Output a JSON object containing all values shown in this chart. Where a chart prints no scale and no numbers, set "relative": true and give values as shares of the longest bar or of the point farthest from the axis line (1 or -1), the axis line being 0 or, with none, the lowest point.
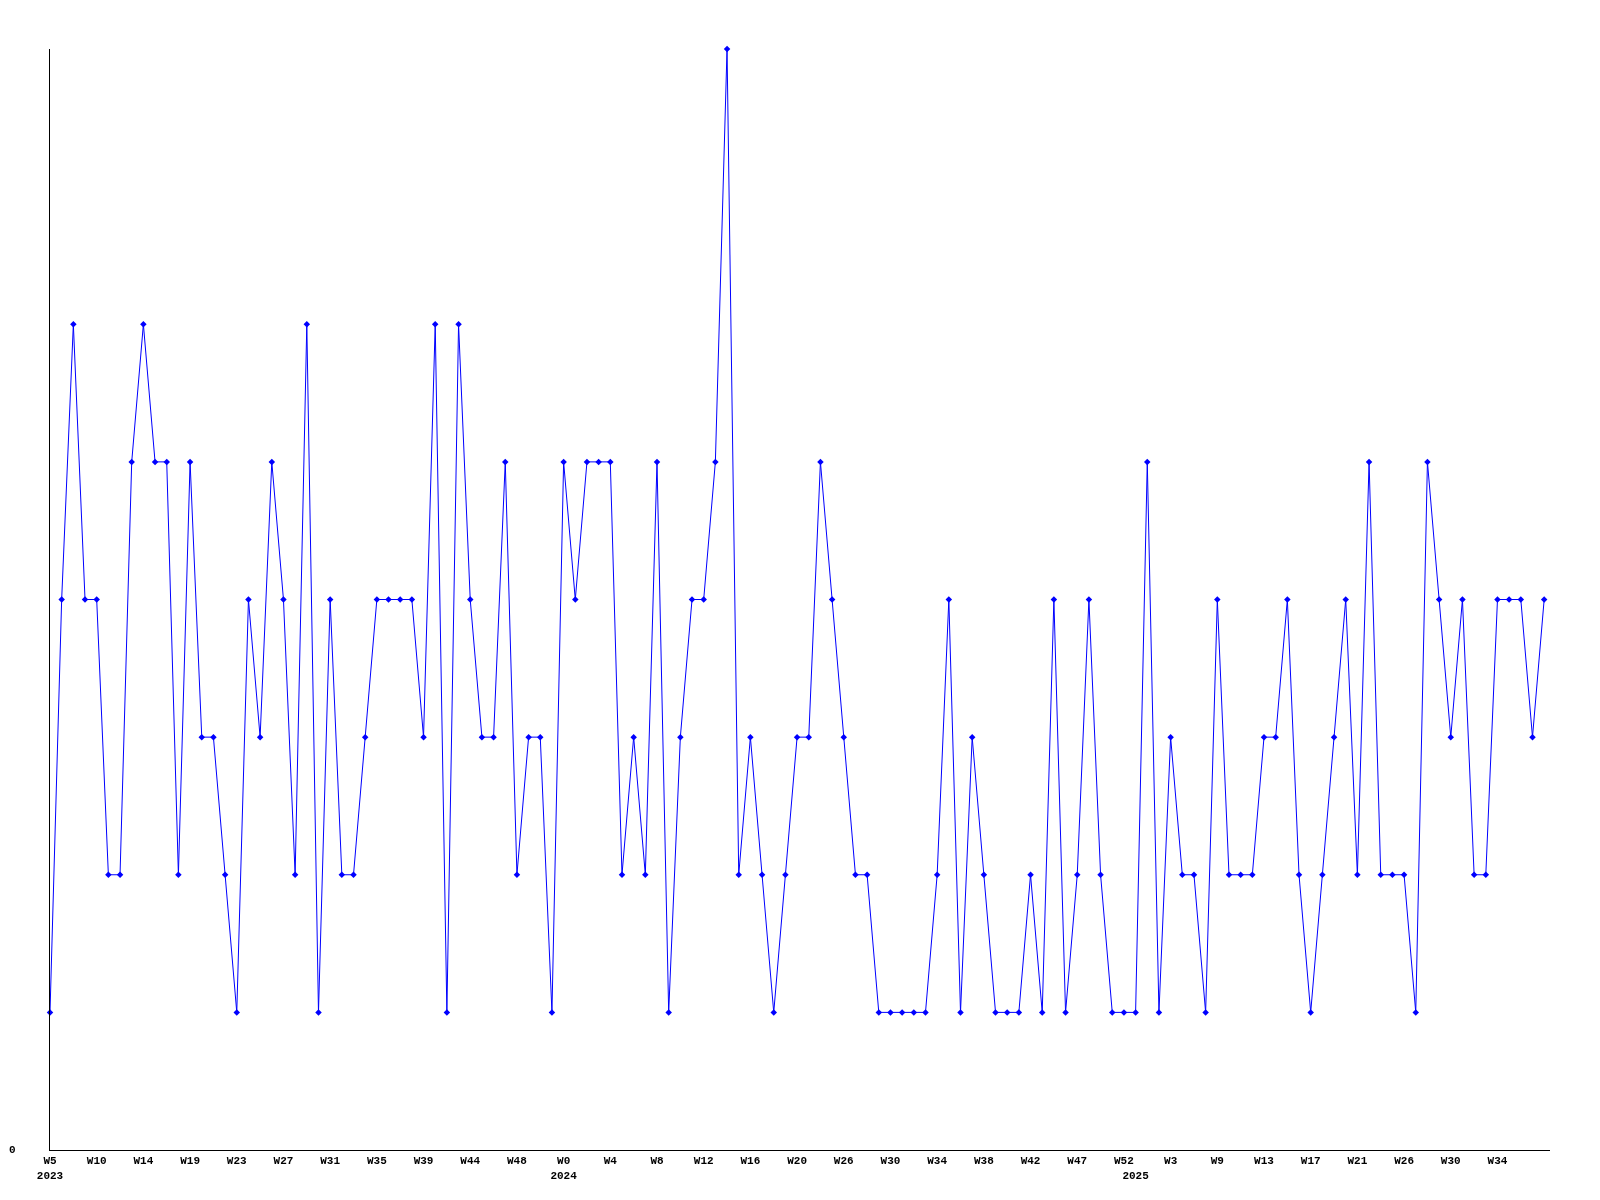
{
  "chart_data": {
    "type": "line",
    "relative": true,
    "color": "#0000ff",
    "marker": "diamond",
    "line_style": "solid",
    "legend": false,
    "categories": [
      "W5\n2023",
      null,
      null,
      null,
      "W10",
      null,
      null,
      null,
      "W14",
      null,
      null,
      null,
      "W19",
      null,
      null,
      null,
      "W23",
      null,
      null,
      null,
      "W27",
      null,
      null,
      null,
      "W31",
      null,
      null,
      null,
      "W35",
      null,
      null,
      null,
      "W39",
      null,
      null,
      null,
      "W44",
      null,
      null,
      null,
      "W48",
      null,
      null,
      null,
      "W0\n2024",
      null,
      null,
      null,
      "W4",
      null,
      null,
      null,
      "W8",
      null,
      null,
      null,
      "W12",
      null,
      null,
      null,
      "W16",
      null,
      null,
      null,
      "W20",
      null,
      null,
      null,
      "W26",
      null,
      null,
      null,
      "W30",
      null,
      null,
      null,
      "W34",
      null,
      null,
      null,
      "W38",
      null,
      null,
      null,
      "W42",
      null,
      null,
      null,
      "W47",
      null,
      null,
      null,
      "W52",
      "\n2025",
      null,
      null,
      "W3",
      null,
      null,
      null,
      "W9",
      null,
      null,
      null,
      "W13",
      null,
      null,
      null,
      "W17",
      null,
      null,
      null,
      "W21",
      null,
      null,
      null,
      "W26",
      null,
      null,
      null,
      "W30",
      null,
      null,
      null,
      "W34",
      null,
      null,
      null,
      null
    ],
    "values": [
      0.125,
      0.5,
      0.75,
      0.5,
      0.5,
      0.25,
      0.25,
      0.625,
      0.75,
      0.625,
      0.625,
      0.25,
      0.625,
      0.375,
      0.375,
      0.25,
      0.125,
      0.5,
      0.375,
      0.625,
      0.5,
      0.25,
      0.75,
      0.125,
      0.5,
      0.25,
      0.25,
      0.375,
      0.5,
      0.5,
      0.5,
      0.5,
      0.375,
      0.75,
      0.125,
      0.75,
      0.5,
      0.375,
      0.375,
      0.625,
      0.25,
      0.375,
      0.375,
      0.125,
      0.625,
      0.5,
      0.625,
      0.625,
      0.625,
      0.25,
      0.375,
      0.25,
      0.625,
      0.125,
      0.375,
      0.5,
      0.5,
      0.625,
      1,
      0.25,
      0.375,
      0.25,
      0.125,
      0.25,
      0.375,
      0.375,
      0.625,
      0.5,
      0.375,
      0.25,
      0.25,
      0.125,
      0.125,
      0.125,
      0.125,
      0.125,
      0.25,
      0.5,
      0.125,
      0.375,
      0.25,
      0.125,
      0.125,
      0.125,
      0.25,
      0.125,
      0.5,
      0.125,
      0.25,
      0.5,
      0.25,
      0.125,
      0.125,
      0.125,
      0.625,
      0.125,
      0.375,
      0.25,
      0.25,
      0.125,
      0.5,
      0.25,
      0.25,
      0.25,
      0.375,
      0.375,
      0.5,
      0.25,
      0.125,
      0.25,
      0.375,
      0.5,
      0.25,
      0.625,
      0.25,
      0.25,
      0.25,
      0.125,
      0.625,
      0.5,
      0.375,
      0.5,
      0.25,
      0.25,
      0.5,
      0.5,
      0.5,
      0.375,
      0.5
    ],
    "annotations": [
      "0"
    ]
  }
}
